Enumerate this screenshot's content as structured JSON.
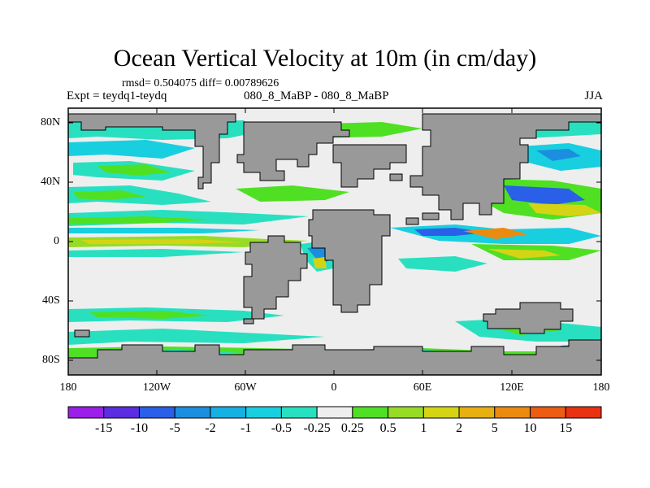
{
  "title": "Ocean Vertical Velocity at 10m (in cm/day)",
  "stats": "rmsd= 0.504075  diff= 0.00789626",
  "left_label": "Expt = teydq1-teydq",
  "center_label": "080_8_MaBP - 080_8_MaBP",
  "right_label": "JJA",
  "lat_ticks": [
    "80N",
    "40N",
    "0",
    "40S",
    "80S"
  ],
  "lon_ticks": [
    "180",
    "120W",
    "60W",
    "0",
    "60E",
    "120E",
    "180"
  ],
  "colorbar": {
    "labels": [
      "-15",
      "-10",
      "-5",
      "-2",
      "-1",
      "-0.5",
      "-0.25",
      "0.25",
      "0.5",
      "1",
      "2",
      "5",
      "10",
      "15"
    ],
    "colors": [
      "#9b1fe8",
      "#5a2ee0",
      "#2a5fe8",
      "#1c8ee0",
      "#16b0e3",
      "#18cfe0",
      "#28e0c0",
      "#eeeeee",
      "#4fe024",
      "#96dc26",
      "#d4d414",
      "#e6b010",
      "#eb8a10",
      "#ec5c12",
      "#e83212"
    ]
  },
  "colors": {
    "land": "#999999",
    "ocean_background": "#eeeeee",
    "coast_line": "#000000"
  }
}
